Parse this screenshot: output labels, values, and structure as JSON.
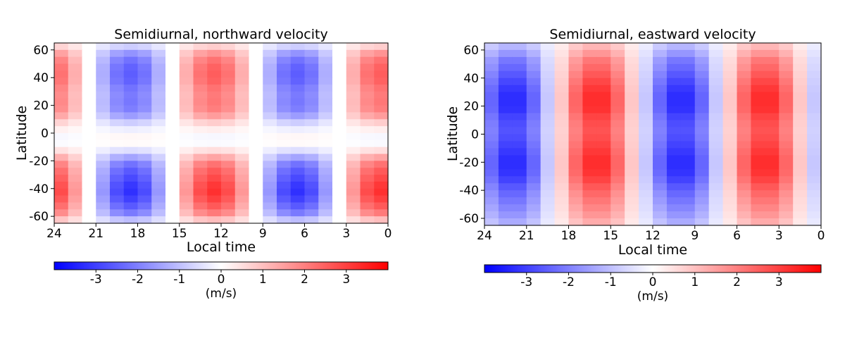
{
  "chart_data": [
    {
      "type": "heatmap",
      "title": "Semidiurnal, northward velocity",
      "xlabel": "Local time",
      "ylabel": "Latitude",
      "x_tick_labels": [
        "24",
        "21",
        "18",
        "15",
        "12",
        "9",
        "6",
        "3",
        "0"
      ],
      "y_tick_labels": [
        "60",
        "40",
        "20",
        "0",
        "-20",
        "-40",
        "-60"
      ],
      "xlim": [
        24,
        0
      ],
      "ylim": [
        -65,
        65
      ],
      "x_reversed": true,
      "grid_columns": 24,
      "lat_centers": [
        62.5,
        57.5,
        52.5,
        47.5,
        42.5,
        37.5,
        32.5,
        27.5,
        22.5,
        17.5,
        12.5,
        7.5,
        2.5,
        -2.5,
        -7.5,
        -12.5,
        -17.5,
        -22.5,
        -27.5,
        -32.5,
        -37.5,
        -42.5,
        -47.5,
        -52.5,
        -57.5,
        -62.5
      ],
      "phase_hours": 0.5,
      "profile": [
        0.3,
        0.65,
        0.85,
        0.95,
        0.98,
        0.95,
        0.85,
        0.8,
        0.82,
        0.78,
        0.6,
        0.3,
        0.1,
        -0.05,
        -0.03,
        0.2,
        0.55,
        0.85,
        1.0,
        1.1,
        1.2,
        1.25,
        1.15,
        1.0,
        0.8,
        0.4
      ],
      "amplitude_ms": 2.6,
      "colorbar": {
        "min": -4,
        "max": 4,
        "ticks": [
          -3,
          -2,
          -1,
          0,
          1,
          2,
          3
        ],
        "tick_labels": [
          "-3",
          "-2",
          "-1",
          "0",
          "1",
          "2",
          "3"
        ],
        "label": "(m/s)",
        "colors": [
          "#0000ff",
          "#ffffff",
          "#ff0000"
        ]
      }
    },
    {
      "type": "heatmap",
      "title": "Semidiurnal, eastward velocity",
      "xlabel": "Local time",
      "ylabel": "Latitude",
      "x_tick_labels": [
        "24",
        "21",
        "18",
        "15",
        "12",
        "9",
        "6",
        "3",
        "0"
      ],
      "y_tick_labels": [
        "60",
        "40",
        "20",
        "0",
        "-20",
        "-40",
        "-60"
      ],
      "xlim": [
        24,
        0
      ],
      "ylim": [
        -65,
        65
      ],
      "x_reversed": true,
      "grid_columns": 24,
      "lat_centers": [
        62.5,
        57.5,
        52.5,
        47.5,
        42.5,
        37.5,
        32.5,
        27.5,
        22.5,
        17.5,
        12.5,
        7.5,
        2.5,
        -2.5,
        -7.5,
        -12.5,
        -17.5,
        -22.5,
        -27.5,
        -32.5,
        -37.5,
        -42.5,
        -47.5,
        -52.5,
        -57.5,
        -62.5
      ],
      "phase_hours": 4.0,
      "profile": [
        0.35,
        0.5,
        0.65,
        0.72,
        0.8,
        0.88,
        0.95,
        1.0,
        1.0,
        0.98,
        0.9,
        0.85,
        0.82,
        0.85,
        0.9,
        0.95,
        1.0,
        1.0,
        0.97,
        0.9,
        0.8,
        0.72,
        0.65,
        0.58,
        0.5,
        0.4
      ],
      "amplitude_ms": 3.4,
      "colorbar": {
        "min": -4,
        "max": 4,
        "ticks": [
          -3,
          -2,
          -1,
          0,
          1,
          2,
          3
        ],
        "tick_labels": [
          "-3",
          "-2",
          "-1",
          "0",
          "1",
          "2",
          "3"
        ],
        "label": "(m/s)",
        "colors": [
          "#0000ff",
          "#ffffff",
          "#ff0000"
        ]
      }
    }
  ]
}
